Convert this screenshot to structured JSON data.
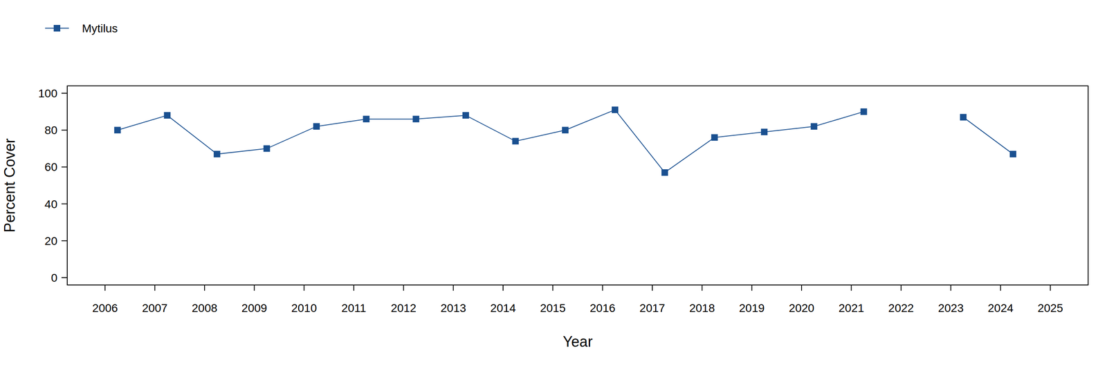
{
  "chart_data": {
    "type": "line",
    "x_label": "Year",
    "y_label": "Percent Cover",
    "x": [
      2006.25,
      2007.25,
      2008.25,
      2009.25,
      2010.25,
      2011.25,
      2012.25,
      2013.25,
      2014.25,
      2015.25,
      2016.25,
      2017.25,
      2018.25,
      2019.25,
      2020.25,
      2021.25,
      2022.25,
      2023.25,
      2024.25
    ],
    "series": [
      {
        "name": "Mytilus",
        "color": "#1a5090",
        "marker": "square",
        "line_style": "solid",
        "values": [
          80,
          88,
          67,
          70,
          82,
          86,
          86,
          88,
          74,
          80,
          91,
          57,
          76,
          79,
          82,
          90,
          null,
          87,
          67
        ]
      }
    ],
    "xlim": [
      2005.24,
      2025.76
    ],
    "xticks": [
      2006,
      2007,
      2008,
      2009,
      2010,
      2011,
      2012,
      2013,
      2014,
      2015,
      2016,
      2017,
      2018,
      2019,
      2020,
      2021,
      2022,
      2023,
      2024,
      2025
    ],
    "ylim": [
      -4,
      104
    ],
    "yticks": [
      0,
      20,
      40,
      60,
      80,
      100
    ],
    "grid": false,
    "legend": "top-left"
  }
}
